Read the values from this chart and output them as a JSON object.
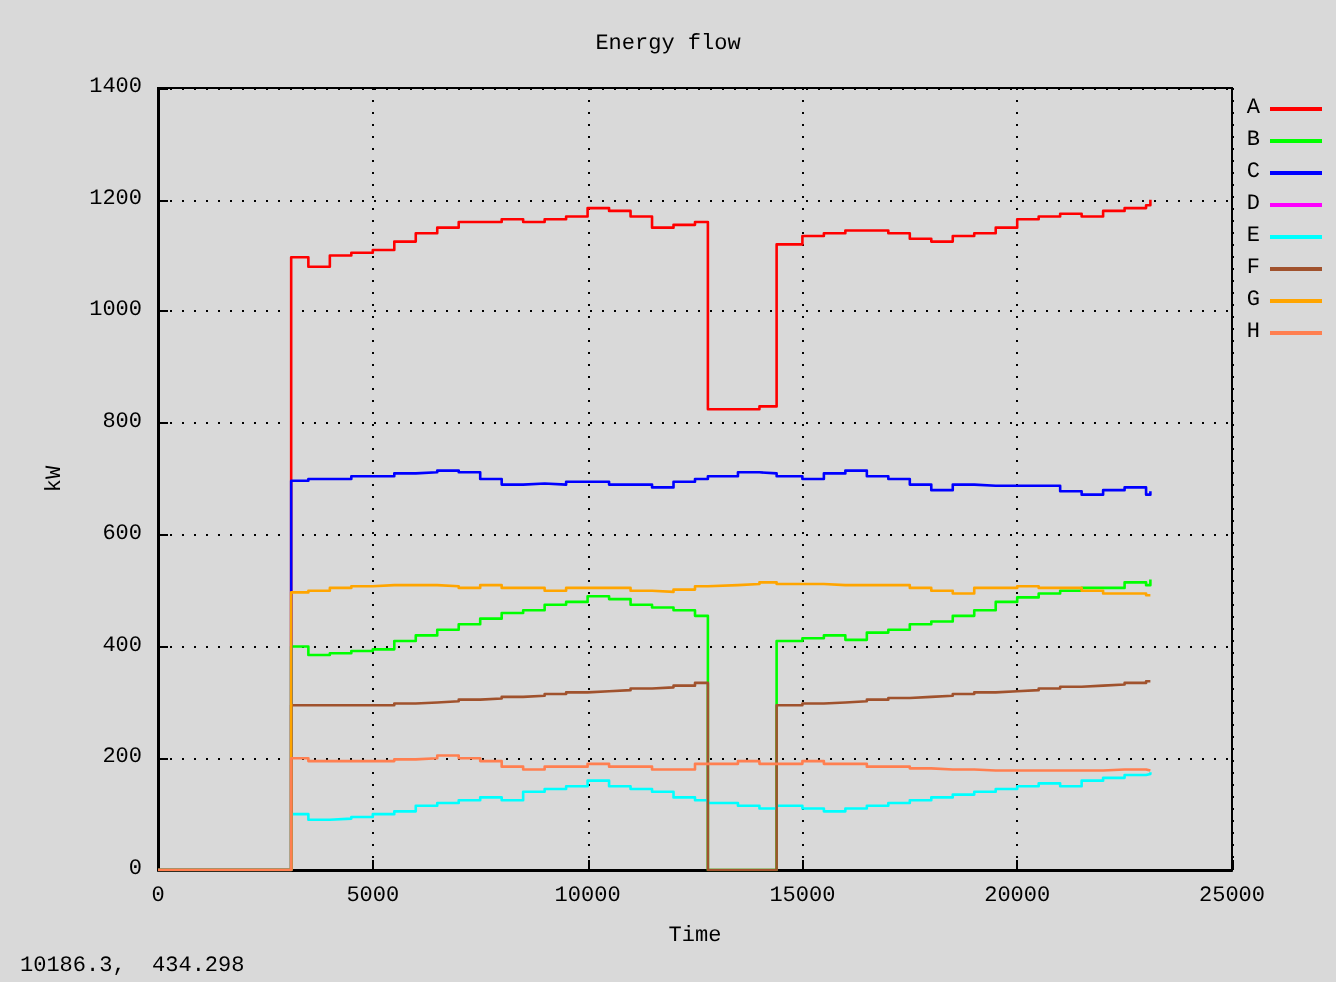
{
  "chart_data": {
    "type": "step",
    "title": "Energy flow",
    "xlabel": "Time",
    "ylabel": "kW",
    "x": [
      0,
      3100,
      3500,
      4000,
      4500,
      5000,
      5500,
      6000,
      6500,
      7000,
      7500,
      8000,
      8500,
      9000,
      9500,
      10000,
      10500,
      11000,
      11500,
      12000,
      12500,
      12800,
      13500,
      14000,
      14400,
      15000,
      15500,
      16000,
      16500,
      17000,
      17500,
      18000,
      18500,
      19000,
      19500,
      20000,
      20500,
      21000,
      21500,
      22000,
      22500,
      23000,
      23100
    ],
    "series": [
      {
        "name": "A",
        "color": "#ff0000",
        "values": [
          0,
          1097,
          1080,
          1100,
          1105,
          1110,
          1125,
          1140,
          1150,
          1160,
          1160,
          1165,
          1160,
          1165,
          1170,
          1185,
          1180,
          1170,
          1150,
          1155,
          1160,
          825,
          825,
          830,
          1120,
          1135,
          1140,
          1145,
          1145,
          1140,
          1130,
          1125,
          1135,
          1140,
          1150,
          1165,
          1170,
          1175,
          1170,
          1180,
          1185,
          1190,
          1200
        ]
      },
      {
        "name": "B",
        "color": "#00ff00",
        "values": [
          0,
          400,
          385,
          388,
          392,
          395,
          410,
          420,
          430,
          440,
          450,
          460,
          465,
          475,
          480,
          490,
          485,
          475,
          470,
          465,
          455,
          0,
          0,
          0,
          410,
          415,
          420,
          412,
          425,
          430,
          440,
          445,
          455,
          465,
          480,
          488,
          495,
          500,
          505,
          505,
          515,
          510,
          520
        ]
      },
      {
        "name": "C",
        "color": "#0000ff",
        "values": [
          0,
          697,
          700,
          700,
          705,
          705,
          710,
          712,
          715,
          712,
          700,
          690,
          692,
          690,
          695,
          695,
          690,
          690,
          685,
          695,
          700,
          705,
          712,
          710,
          705,
          700,
          710,
          715,
          705,
          700,
          690,
          680,
          690,
          688,
          688,
          688,
          688,
          678,
          672,
          680,
          685,
          672,
          678
        ]
      },
      {
        "name": "D",
        "color": "#ff00ff",
        "values": [
          null,
          null,
          null,
          null,
          null,
          null,
          null,
          null,
          null,
          null,
          null,
          null,
          null,
          null,
          null,
          null,
          null,
          null,
          null,
          null,
          null,
          null,
          null,
          null,
          null,
          null,
          null,
          null,
          null,
          null,
          null,
          null,
          null,
          null,
          null,
          null,
          null,
          null,
          null,
          null,
          null,
          null,
          null
        ]
      },
      {
        "name": "E",
        "color": "#00ffff",
        "values": [
          0,
          100,
          90,
          92,
          95,
          100,
          105,
          115,
          120,
          125,
          130,
          125,
          140,
          145,
          150,
          160,
          150,
          145,
          140,
          130,
          125,
          120,
          115,
          110,
          115,
          110,
          105,
          110,
          115,
          120,
          125,
          130,
          135,
          140,
          145,
          150,
          155,
          150,
          160,
          165,
          170,
          172,
          175
        ]
      },
      {
        "name": "F",
        "color": "#a0522d",
        "values": [
          0,
          295,
          295,
          295,
          295,
          295,
          298,
          300,
          302,
          305,
          307,
          310,
          312,
          315,
          318,
          320,
          322,
          325,
          327,
          330,
          335,
          0,
          0,
          0,
          295,
          298,
          300,
          302,
          305,
          308,
          310,
          312,
          315,
          318,
          320,
          322,
          325,
          328,
          330,
          332,
          335,
          338,
          340
        ]
      },
      {
        "name": "G",
        "color": "#ffa500",
        "values": [
          0,
          497,
          500,
          505,
          508,
          510,
          510,
          510,
          508,
          505,
          510,
          505,
          505,
          500,
          505,
          505,
          505,
          500,
          498,
          502,
          508,
          510,
          512,
          515,
          512,
          512,
          510,
          510,
          510,
          510,
          505,
          500,
          495,
          505,
          505,
          508,
          505,
          505,
          500,
          495,
          495,
          492,
          490
        ]
      },
      {
        "name": "H",
        "color": "#ff7f50",
        "values": [
          0,
          200,
          195,
          195,
          195,
          195,
          198,
          200,
          205,
          200,
          195,
          185,
          180,
          185,
          185,
          190,
          185,
          185,
          180,
          180,
          190,
          190,
          195,
          190,
          190,
          195,
          190,
          190,
          185,
          185,
          182,
          180,
          180,
          178,
          178,
          178,
          178,
          178,
          178,
          180,
          180,
          178,
          178
        ]
      }
    ],
    "xlim": [
      0,
      25000
    ],
    "xticks": [
      0,
      5000,
      10000,
      15000,
      20000,
      25000
    ],
    "ylim": [
      0,
      1400
    ],
    "yticks": [
      0,
      200,
      400,
      600,
      800,
      1000,
      1200,
      1400
    ],
    "grid": true,
    "legend": "right",
    "marker": "none",
    "line_style": "solid",
    "annotations": [
      "10186.3,  434.298"
    ]
  }
}
